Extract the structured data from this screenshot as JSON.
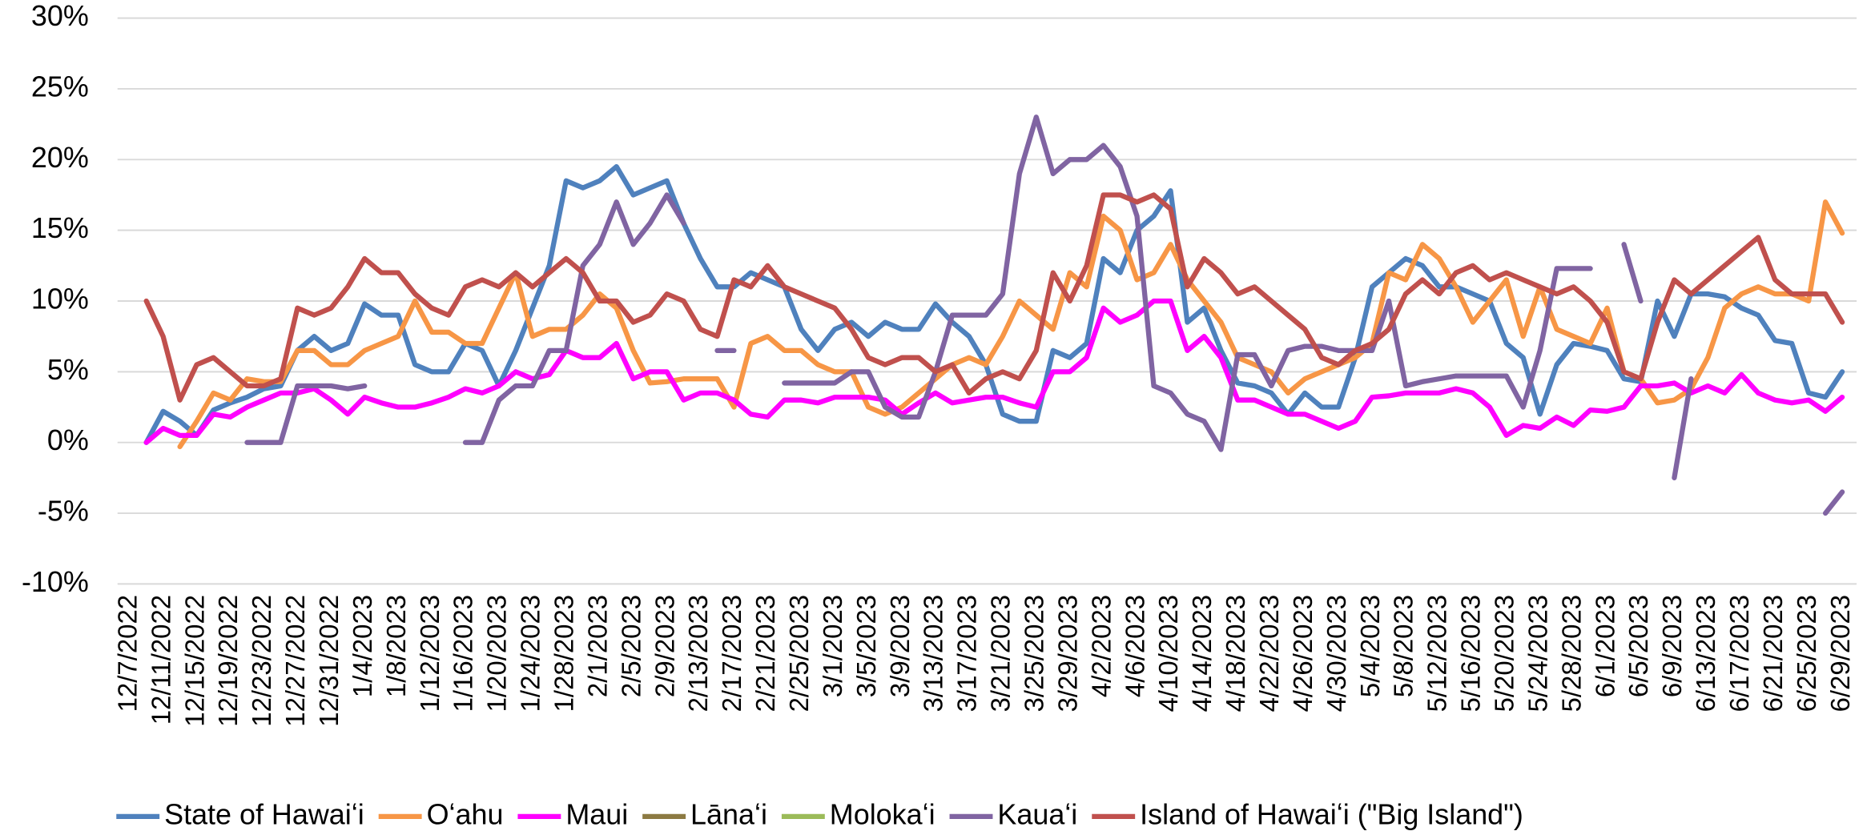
{
  "chart_data": {
    "type": "line",
    "categories": [
      "12/7/2022",
      null,
      "12/11/2022",
      null,
      "12/15/2022",
      null,
      "12/19/2022",
      null,
      "12/23/2022",
      null,
      "12/27/2022",
      null,
      "12/31/2022",
      null,
      "1/4/2023",
      null,
      "1/8/2023",
      null,
      "1/12/2023",
      null,
      "1/16/2023",
      null,
      "1/20/2023",
      null,
      "1/24/2023",
      null,
      "1/28/2023",
      null,
      "2/1/2023",
      null,
      "2/5/2023",
      null,
      "2/9/2023",
      null,
      "2/13/2023",
      null,
      "2/17/2023",
      null,
      "2/21/2023",
      null,
      "2/25/2023",
      null,
      "3/1/2023",
      null,
      "3/5/2023",
      null,
      "3/9/2023",
      null,
      "3/13/2023",
      null,
      "3/17/2023",
      null,
      "3/21/2023",
      null,
      "3/25/2023",
      null,
      "3/29/2023",
      null,
      "4/2/2023",
      null,
      "4/6/2023",
      null,
      "4/10/2023",
      null,
      "4/14/2023",
      null,
      "4/18/2023",
      null,
      "4/22/2023",
      null,
      "4/26/2023",
      null,
      "4/30/2023",
      null,
      "5/4/2023",
      null,
      "5/8/2023",
      null,
      "5/12/2023",
      null,
      "5/16/2023",
      null,
      "5/20/2023",
      null,
      "5/24/2023",
      null,
      "5/28/2023",
      null,
      "6/1/2023",
      null,
      "6/5/2023",
      null,
      "6/9/2023",
      null,
      "6/13/2023",
      null,
      "6/17/2023",
      null,
      "6/21/2023",
      null,
      "6/25/2023",
      null,
      "6/29/2023"
    ],
    "series": [
      {
        "name": "State of Hawaiʻi",
        "color": "#4f81bd",
        "values": [
          null,
          0,
          2.2,
          1.5,
          0.5,
          2.3,
          2.8,
          3.2,
          3.8,
          4.0,
          6.5,
          7.5,
          6.5,
          7.0,
          9.8,
          9.0,
          9.0,
          5.5,
          5.0,
          5.0,
          7.0,
          6.5,
          4.0,
          6.5,
          9.5,
          12.5,
          18.5,
          18.0,
          18.5,
          19.5,
          17.5,
          18.0,
          18.5,
          15.5,
          13.0,
          11.0,
          11.0,
          12.0,
          11.5,
          11.0,
          8.0,
          6.5,
          8.0,
          8.5,
          7.5,
          8.5,
          8.0,
          8.0,
          9.8,
          8.5,
          7.5,
          5.5,
          2.0,
          1.5,
          1.5,
          6.5,
          6.0,
          7.0,
          13.0,
          12.0,
          15.0,
          16.0,
          17.8,
          8.5,
          9.5,
          6.5,
          4.2,
          4.0,
          3.5,
          2.0,
          3.5,
          2.5,
          2.5,
          6.0,
          11.0,
          12.0,
          13.0,
          12.5,
          11.0,
          11.0,
          10.5,
          10.0,
          7.0,
          6.0,
          2.0,
          5.5,
          7.0,
          6.8,
          6.5,
          4.5,
          4.3,
          10.0,
          7.5,
          10.5,
          10.5,
          10.3,
          9.5,
          9.0,
          7.2,
          7.0,
          3.5,
          3.2,
          5.0
        ]
      },
      {
        "name": "Oʻahu",
        "color": "#f79646",
        "values": [
          null,
          null,
          null,
          -0.3,
          1.5,
          3.5,
          3.0,
          4.5,
          4.3,
          4.3,
          6.5,
          6.5,
          5.5,
          5.5,
          6.5,
          7.0,
          7.5,
          10.0,
          7.8,
          7.8,
          7.0,
          7.0,
          9.5,
          12.0,
          7.5,
          8.0,
          8.0,
          9.0,
          10.5,
          9.5,
          6.5,
          4.2,
          4.3,
          4.5,
          4.5,
          4.5,
          2.5,
          7.0,
          7.5,
          6.5,
          6.5,
          5.5,
          5.0,
          5.0,
          2.5,
          2.0,
          2.5,
          3.5,
          4.5,
          5.5,
          6.0,
          5.5,
          7.5,
          10.0,
          9.0,
          8.0,
          12.0,
          11.0,
          16.0,
          15.0,
          11.5,
          12.0,
          14.0,
          11.5,
          10.0,
          8.5,
          6.0,
          5.5,
          5.0,
          3.5,
          4.5,
          5.0,
          5.5,
          6.0,
          7.0,
          12.0,
          11.5,
          14.0,
          13.0,
          11.0,
          8.5,
          10.0,
          11.5,
          7.5,
          11.0,
          8.0,
          7.5,
          7.0,
          9.5,
          5.0,
          4.5,
          2.8,
          3.0,
          3.8,
          6.0,
          9.5,
          10.5,
          11.0,
          10.5,
          10.5,
          10.0,
          17.0,
          14.8
        ]
      },
      {
        "name": "Maui",
        "color": "#ff00ff",
        "values": [
          null,
          0,
          1.0,
          0.5,
          0.5,
          2.0,
          1.8,
          2.5,
          3.0,
          3.5,
          3.5,
          3.8,
          3.0,
          2.0,
          3.2,
          2.8,
          2.5,
          2.5,
          2.8,
          3.2,
          3.8,
          3.5,
          4.0,
          5.0,
          4.5,
          4.8,
          6.5,
          6.0,
          6.0,
          7.0,
          4.5,
          5.0,
          5.0,
          3.0,
          3.5,
          3.5,
          3.0,
          2.0,
          1.8,
          3.0,
          3.0,
          2.8,
          3.2,
          3.2,
          3.2,
          3.0,
          2.0,
          2.8,
          3.5,
          2.8,
          3.0,
          3.2,
          3.2,
          2.8,
          2.5,
          5.0,
          5.0,
          6.0,
          9.5,
          8.5,
          9.0,
          10.0,
          10.0,
          6.5,
          7.5,
          6.0,
          3.0,
          3.0,
          2.5,
          2.0,
          2.0,
          1.5,
          1.0,
          1.5,
          3.2,
          3.3,
          3.5,
          3.5,
          3.5,
          3.8,
          3.5,
          2.5,
          0.5,
          1.2,
          1.0,
          1.8,
          1.2,
          2.3,
          2.2,
          2.5,
          4.0,
          4.0,
          4.2,
          3.5,
          4.0,
          3.5,
          4.8,
          3.5,
          3.0,
          2.8,
          3.0,
          2.2,
          3.2
        ]
      },
      {
        "name": "Lānaʻi",
        "color": "#8c7a42",
        "values": [
          null,
          null,
          null,
          null,
          null,
          null,
          null,
          null,
          null,
          null,
          null,
          null,
          null,
          null,
          null,
          null,
          null,
          null,
          null,
          null,
          null,
          null,
          null,
          null,
          null,
          null,
          null,
          null,
          null,
          null,
          null,
          null,
          null,
          null,
          null,
          null,
          null,
          null,
          null,
          null,
          null,
          null,
          null,
          null,
          null,
          null,
          null,
          null,
          null,
          null,
          null,
          null,
          null,
          null,
          null,
          null,
          null,
          null,
          null,
          null,
          null,
          null,
          null,
          null,
          null,
          null,
          null,
          null,
          null,
          null,
          null,
          null,
          null,
          null,
          null,
          null,
          null,
          null,
          null,
          null,
          null,
          null,
          null,
          null,
          null,
          null,
          null,
          null,
          null,
          null,
          null,
          null,
          null,
          null,
          null,
          null,
          null,
          null,
          null,
          null,
          null,
          null,
          null
        ]
      },
      {
        "name": "Molokaʻi",
        "color": "#9bbb59",
        "values": [
          null,
          null,
          null,
          null,
          null,
          null,
          null,
          null,
          null,
          null,
          null,
          null,
          null,
          null,
          null,
          null,
          null,
          null,
          null,
          null,
          null,
          null,
          null,
          null,
          null,
          null,
          null,
          null,
          null,
          null,
          null,
          null,
          null,
          null,
          null,
          null,
          null,
          null,
          null,
          null,
          null,
          null,
          null,
          null,
          null,
          null,
          null,
          null,
          null,
          null,
          null,
          null,
          null,
          null,
          null,
          null,
          null,
          null,
          null,
          null,
          null,
          null,
          null,
          null,
          null,
          null,
          null,
          null,
          null,
          null,
          null,
          null,
          null,
          null,
          null,
          null,
          null,
          null,
          null,
          null,
          null,
          null,
          null,
          null,
          null,
          null,
          null,
          null,
          null,
          null,
          null,
          null,
          null,
          null,
          null,
          null,
          null,
          null,
          null,
          null,
          null,
          null,
          null
        ]
      },
      {
        "name": "Kauaʻi",
        "color": "#8064a2",
        "values": [
          null,
          null,
          null,
          null,
          null,
          null,
          null,
          0,
          0,
          0,
          4.0,
          4.0,
          4.0,
          3.8,
          4.0,
          null,
          null,
          null,
          null,
          null,
          0,
          0,
          3.0,
          4.0,
          4.0,
          6.5,
          6.5,
          12.5,
          14.0,
          17.0,
          14.0,
          15.5,
          17.5,
          15.5,
          null,
          6.5,
          6.5,
          null,
          null,
          4.2,
          4.2,
          4.2,
          4.2,
          5.0,
          5.0,
          2.5,
          1.8,
          1.8,
          5.0,
          9.0,
          9.0,
          9.0,
          10.5,
          19.0,
          23.0,
          19.0,
          20.0,
          20.0,
          21.0,
          19.5,
          16.0,
          4.0,
          3.5,
          2.0,
          1.5,
          -0.5,
          6.2,
          6.2,
          4.0,
          6.5,
          6.8,
          6.8,
          6.5,
          6.5,
          6.5,
          10.0,
          4.0,
          4.3,
          4.5,
          4.7,
          4.7,
          4.7,
          4.7,
          2.5,
          6.5,
          12.3,
          12.3,
          12.3,
          null,
          14.0,
          10.0,
          null,
          -2.5,
          4.5,
          null,
          null,
          null,
          null,
          null,
          null,
          null,
          -5.0,
          -3.5
        ]
      },
      {
        "name": "Island of Hawaiʻi (\"Big Island\")",
        "color": "#c0504d",
        "values": [
          null,
          10,
          7.5,
          3.0,
          5.5,
          6.0,
          5.0,
          4.0,
          4.0,
          4.5,
          9.5,
          9.0,
          9.5,
          11.0,
          13.0,
          12.0,
          12.0,
          10.5,
          9.5,
          9.0,
          11.0,
          11.5,
          11.0,
          12.0,
          11.0,
          12.0,
          13.0,
          12.0,
          10.0,
          10.0,
          8.5,
          9.0,
          10.5,
          10.0,
          8.0,
          7.5,
          11.5,
          11.0,
          12.5,
          11.0,
          10.5,
          10.0,
          9.5,
          8.0,
          6.0,
          5.5,
          6.0,
          6.0,
          5.0,
          5.5,
          3.5,
          4.5,
          5.0,
          4.5,
          6.5,
          12.0,
          10.0,
          12.5,
          17.5,
          17.5,
          17.0,
          17.5,
          16.5,
          11.0,
          13.0,
          12.0,
          10.5,
          11.0,
          10.0,
          9.0,
          8.0,
          6.0,
          5.5,
          6.5,
          7.0,
          8.0,
          10.5,
          11.5,
          10.5,
          12.0,
          12.5,
          11.5,
          12.0,
          11.5,
          11.0,
          10.5,
          11.0,
          10.0,
          8.5,
          5.0,
          4.5,
          8.5,
          11.5,
          10.5,
          11.5,
          12.5,
          13.5,
          14.5,
          11.5,
          10.5,
          10.5,
          10.5,
          8.5
        ]
      }
    ],
    "ylim": [
      -10,
      30
    ],
    "yticks": [
      {
        "value": -10,
        "label": "-10%"
      },
      {
        "value": -5,
        "label": "-5%"
      },
      {
        "value": 0,
        "label": "0%"
      },
      {
        "value": 5,
        "label": "5%"
      },
      {
        "value": 10,
        "label": "10%"
      },
      {
        "value": 15,
        "label": "15%"
      },
      {
        "value": 20,
        "label": "20%"
      },
      {
        "value": 25,
        "label": "25%"
      },
      {
        "value": 30,
        "label": "30%"
      }
    ],
    "grid": true,
    "legend": "bottom"
  }
}
